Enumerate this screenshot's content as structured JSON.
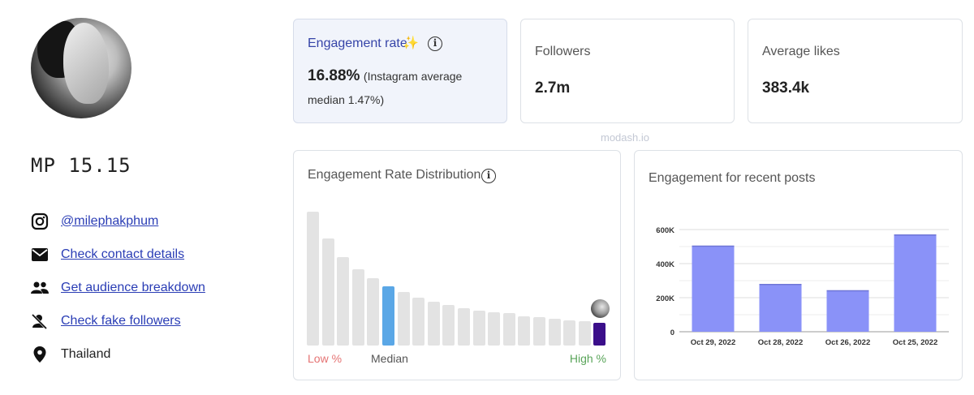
{
  "profile": {
    "name": "MP 15.15",
    "links": [
      {
        "icon": "instagram-icon",
        "label": "@milephakphum",
        "link": true
      },
      {
        "icon": "mail-icon",
        "label": "Check contact details",
        "link": true
      },
      {
        "icon": "people-icon",
        "label": "Get audience breakdown",
        "link": true
      },
      {
        "icon": "fake-followers-icon",
        "label": "Check fake followers",
        "link": true
      },
      {
        "icon": "location-pin-icon",
        "label": "Thailand",
        "link": false
      }
    ]
  },
  "stats": {
    "engagement": {
      "title": "Engagement rate",
      "value": "16.88%",
      "note": "(Instagram average median 1.47%)"
    },
    "followers": {
      "title": "Followers",
      "value": "2.7m"
    },
    "likes": {
      "title": "Average likes",
      "value": "383.4k"
    }
  },
  "watermark": "modash.io",
  "distribution": {
    "title": "Engagement Rate Distribution",
    "low_label": "Low %",
    "median_label": "Median",
    "high_label": "High %",
    "bars": [
      1.0,
      0.8,
      0.66,
      0.57,
      0.5,
      0.44,
      0.4,
      0.36,
      0.33,
      0.3,
      0.28,
      0.26,
      0.25,
      0.24,
      0.22,
      0.21,
      0.2,
      0.19,
      0.18,
      0.17
    ],
    "median_index": 5,
    "high_index": 19,
    "colors": {
      "bar": "#e3e3e3",
      "median": "#5aa7e6",
      "high": "#3b0f8a",
      "low_text": "#e57373",
      "high_text": "#5aa55a"
    }
  },
  "recent": {
    "title": "Engagement for recent posts"
  },
  "chart_data": {
    "type": "bar",
    "title": "Engagement for recent posts",
    "categories": [
      "Oct 29, 2022",
      "Oct 28, 2022",
      "Oct 26, 2022",
      "Oct 25, 2022"
    ],
    "values": [
      505000,
      280000,
      243000,
      570000
    ],
    "ylim": [
      0,
      600000
    ],
    "yticks": [
      "0",
      "200K",
      "400K",
      "600K"
    ],
    "ytick_values": [
      0,
      200000,
      400000,
      600000
    ],
    "grid": true,
    "color": "#8a92f8"
  }
}
